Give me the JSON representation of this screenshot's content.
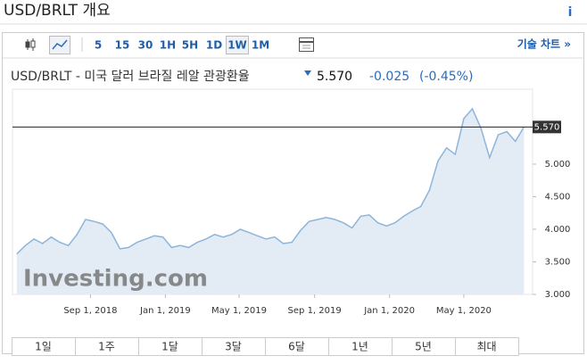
{
  "header": {
    "title": "USD/BRLT 개요",
    "info": "i",
    "technical": "기술 차트 »",
    "instrument": "USD/BRLT - 미국 달러 브라질 레알 관광환율",
    "price": "5.570",
    "change": "-0.025",
    "change_pct": "(-0.45%)"
  },
  "toolbar": {
    "intervals": [
      "5",
      "15",
      "30",
      "1H",
      "5H",
      "1D",
      "1W",
      "1M"
    ],
    "selected": "1W"
  },
  "ranges": [
    "1일",
    "1주",
    "1달",
    "3달",
    "6달",
    "1년",
    "5년",
    "최대"
  ],
  "chart_data": {
    "type": "area",
    "watermark": "Investing.com",
    "color": "#8db5da",
    "fill": "#e3ecf5",
    "x": [
      "2018-05-04",
      "2018-05-18",
      "2018-06-01",
      "2018-06-15",
      "2018-06-29",
      "2018-07-13",
      "2018-07-27",
      "2018-08-10",
      "2018-08-24",
      "2018-09-07",
      "2018-09-21",
      "2018-10-05",
      "2018-10-19",
      "2018-11-02",
      "2018-11-16",
      "2018-11-30",
      "2018-12-14",
      "2018-12-28",
      "2019-01-11",
      "2019-01-25",
      "2019-02-08",
      "2019-02-22",
      "2019-03-08",
      "2019-03-22",
      "2019-04-05",
      "2019-04-19",
      "2019-05-03",
      "2019-05-17",
      "2019-05-31",
      "2019-06-14",
      "2019-06-28",
      "2019-07-12",
      "2019-07-26",
      "2019-08-09",
      "2019-08-23",
      "2019-09-06",
      "2019-09-20",
      "2019-10-04",
      "2019-10-18",
      "2019-11-01",
      "2019-11-15",
      "2019-11-29",
      "2019-12-13",
      "2019-12-27",
      "2020-01-10",
      "2020-01-24",
      "2020-02-07",
      "2020-02-21",
      "2020-03-06",
      "2020-03-20",
      "2020-04-03",
      "2020-04-17",
      "2020-05-01",
      "2020-05-15",
      "2020-05-29",
      "2020-06-12",
      "2020-06-26",
      "2020-07-10",
      "2020-07-24",
      "2020-08-07"
    ],
    "values": [
      3.62,
      3.75,
      3.85,
      3.78,
      3.88,
      3.8,
      3.75,
      3.92,
      4.15,
      4.12,
      4.08,
      3.95,
      3.7,
      3.72,
      3.8,
      3.85,
      3.9,
      3.88,
      3.72,
      3.75,
      3.72,
      3.8,
      3.85,
      3.92,
      3.88,
      3.92,
      4.0,
      3.95,
      3.9,
      3.85,
      3.88,
      3.78,
      3.8,
      3.98,
      4.12,
      4.15,
      4.18,
      4.15,
      4.1,
      4.02,
      4.2,
      4.22,
      4.1,
      4.05,
      4.1,
      4.2,
      4.28,
      4.35,
      4.6,
      5.05,
      5.25,
      5.15,
      5.7,
      5.85,
      5.55,
      5.1,
      5.45,
      5.5,
      5.35,
      5.57
    ],
    "xlim": [
      "2018-04-27",
      "2020-08-21"
    ],
    "xticks": [
      {
        "value": "2018-09-01",
        "label": "Sep 1, 2018"
      },
      {
        "value": "2019-01-01",
        "label": "Jan 1, 2019"
      },
      {
        "value": "2019-05-01",
        "label": "May 1, 2019"
      },
      {
        "value": "2019-09-01",
        "label": "Sep 1, 2019"
      },
      {
        "value": "2020-01-01",
        "label": "Jan 1, 2020"
      },
      {
        "value": "2020-05-01",
        "label": "May 1, 2020"
      }
    ],
    "ylim": [
      3,
      6.15
    ],
    "yticks": [
      {
        "value": 3,
        "label": "3.000"
      },
      {
        "value": 3.5,
        "label": "3.500"
      },
      {
        "value": 4,
        "label": "4.000"
      },
      {
        "value": 4.5,
        "label": "4.500"
      },
      {
        "value": 5,
        "label": "5.000"
      }
    ]
  }
}
